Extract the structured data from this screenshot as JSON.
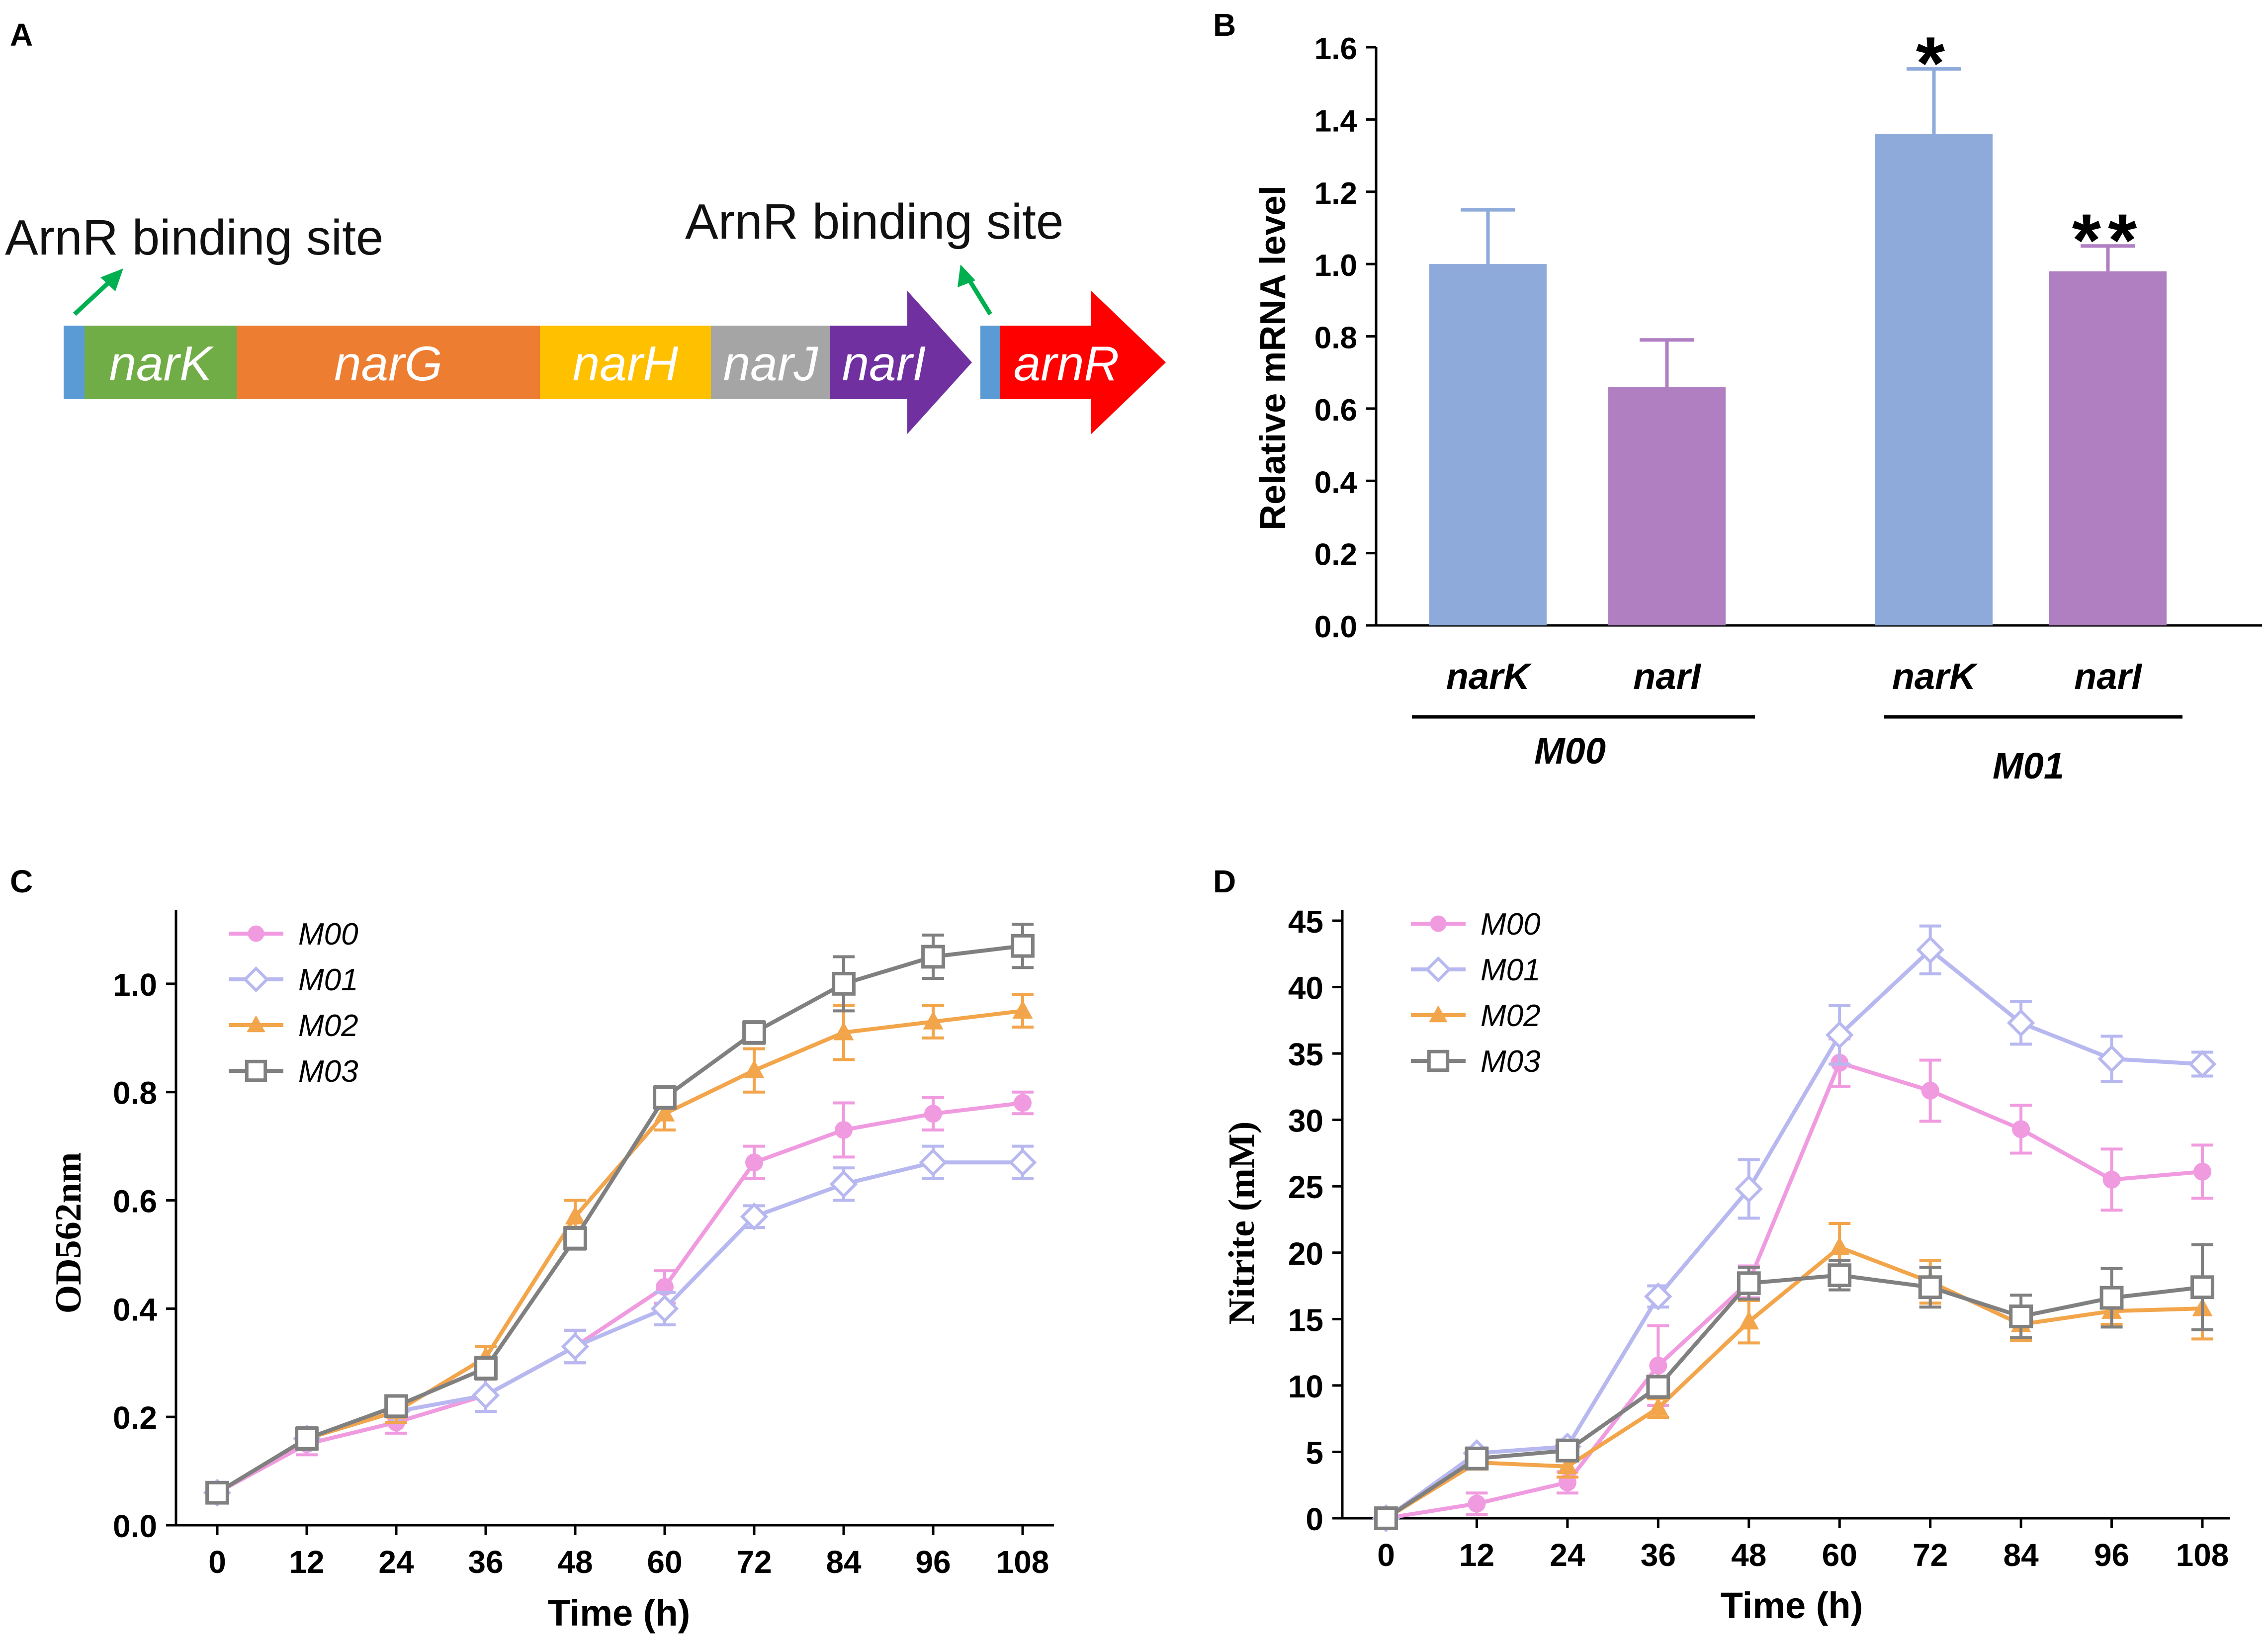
{
  "panels": {
    "A": {
      "label": "A",
      "binding_labels": [
        "ArnR binding site",
        "ArnR binding site"
      ],
      "genes": [
        {
          "name": "narK",
          "color": "#70AD47"
        },
        {
          "name": "narG",
          "color": "#ED7D31"
        },
        {
          "name": "narH",
          "color": "#FFC000"
        },
        {
          "name": "narJ",
          "color": "#A5A5A5"
        },
        {
          "name": "narI",
          "color": "#7030A0"
        },
        {
          "name": "arnR",
          "color": "#FF0000"
        }
      ],
      "binding_box_color": "#5B9BD5",
      "arrow_color": "#00B050"
    },
    "B": {
      "label": "B"
    },
    "C": {
      "label": "C"
    },
    "D": {
      "label": "D"
    }
  },
  "chart_data": [
    {
      "panel": "B",
      "type": "bar",
      "ylabel": "Relative mRNA level",
      "ylim": [
        0,
        1.6
      ],
      "yticks": [
        "0.0",
        "0.2",
        "0.4",
        "0.6",
        "0.8",
        "1.0",
        "1.2",
        "1.4",
        "1.6"
      ],
      "groups": [
        {
          "name": "M00",
          "bars": [
            {
              "gene": "narK",
              "value": 1.0,
              "error": 0.15,
              "color": "#8EAADB",
              "sig": ""
            },
            {
              "gene": "narI",
              "value": 0.66,
              "error": 0.13,
              "color": "#B07FC2",
              "sig": ""
            }
          ]
        },
        {
          "name": "M01",
          "bars": [
            {
              "gene": "narK",
              "value": 1.36,
              "error": 0.18,
              "color": "#8EAADB",
              "sig": "*"
            },
            {
              "gene": "narI",
              "value": 0.98,
              "error": 0.07,
              "color": "#B07FC2",
              "sig": "**"
            }
          ]
        }
      ]
    },
    {
      "panel": "C",
      "type": "line",
      "xlabel": "Time (h)",
      "ylabel": "OD562nm",
      "x": [
        0,
        12,
        24,
        36,
        48,
        60,
        72,
        84,
        96,
        108
      ],
      "xlim": [
        0,
        108
      ],
      "ylim": [
        0,
        1.1
      ],
      "yticks": [
        "0.0",
        "0.2",
        "0.4",
        "0.6",
        "0.8",
        "1.0"
      ],
      "yticks_values": [
        0,
        0.2,
        0.4,
        0.6,
        0.8,
        1.0
      ],
      "legend": "top-left",
      "series": [
        {
          "name": "M00",
          "color": "#F09BE0",
          "marker": "circle",
          "values": [
            0.06,
            0.15,
            0.19,
            0.24,
            0.33,
            0.44,
            0.67,
            0.73,
            0.76,
            0.78
          ],
          "errors": [
            0.01,
            0.02,
            0.02,
            0.03,
            0.03,
            0.03,
            0.03,
            0.05,
            0.03,
            0.02
          ]
        },
        {
          "name": "M01",
          "color": "#B8B8F0",
          "marker": "diamond",
          "values": [
            0.06,
            0.16,
            0.21,
            0.24,
            0.33,
            0.4,
            0.57,
            0.63,
            0.67,
            0.67
          ],
          "errors": [
            0.01,
            0.02,
            0.02,
            0.03,
            0.03,
            0.03,
            0.02,
            0.03,
            0.03,
            0.03
          ]
        },
        {
          "name": "M02",
          "color": "#F2A54A",
          "marker": "triangle",
          "values": [
            0.06,
            0.16,
            0.21,
            0.31,
            0.57,
            0.76,
            0.84,
            0.91,
            0.93,
            0.95
          ],
          "errors": [
            0.01,
            0.02,
            0.02,
            0.02,
            0.03,
            0.03,
            0.04,
            0.05,
            0.03,
            0.03
          ]
        },
        {
          "name": "M03",
          "color": "#808080",
          "marker": "square",
          "values": [
            0.06,
            0.16,
            0.22,
            0.29,
            0.53,
            0.79,
            0.91,
            1.0,
            1.05,
            1.07
          ],
          "errors": [
            0.01,
            0.02,
            0.01,
            0.02,
            0.02,
            0.02,
            0.02,
            0.05,
            0.04,
            0.04
          ]
        }
      ]
    },
    {
      "panel": "D",
      "type": "line",
      "xlabel": "Time (h)",
      "ylabel": "Nitrite (mM)",
      "x": [
        0,
        12,
        24,
        36,
        48,
        60,
        72,
        84,
        96,
        108
      ],
      "xlim": [
        0,
        108
      ],
      "ylim": [
        0,
        45
      ],
      "yticks": [
        "0",
        "5",
        "10",
        "15",
        "20",
        "25",
        "30",
        "35",
        "40",
        "45"
      ],
      "yticks_values": [
        0,
        5,
        10,
        15,
        20,
        25,
        30,
        35,
        40,
        45
      ],
      "legend": "top-left",
      "series": [
        {
          "name": "M00",
          "color": "#F09BE0",
          "marker": "circle",
          "values": [
            0,
            1.1,
            2.7,
            11.5,
            17.8,
            34.3,
            32.2,
            29.3,
            25.5,
            26.1
          ],
          "errors": [
            0.3,
            0.8,
            0.8,
            3.0,
            1.2,
            1.8,
            2.3,
            1.8,
            2.3,
            2.0
          ]
        },
        {
          "name": "M01",
          "color": "#B8B8F0",
          "marker": "diamond",
          "values": [
            0,
            4.9,
            5.4,
            16.7,
            24.8,
            36.4,
            42.8,
            37.3,
            34.6,
            34.2
          ],
          "errors": [
            0.3,
            0.4,
            0.5,
            0.8,
            2.2,
            2.2,
            1.8,
            1.6,
            1.7,
            0.9
          ]
        },
        {
          "name": "M02",
          "color": "#F2A54A",
          "marker": "triangle",
          "values": [
            0,
            4.2,
            3.9,
            8.3,
            14.8,
            20.4,
            17.8,
            14.6,
            15.6,
            15.8
          ],
          "errors": [
            0.3,
            0.5,
            0.8,
            0.7,
            1.6,
            1.8,
            1.6,
            1.2,
            1.0,
            2.3
          ]
        },
        {
          "name": "M03",
          "color": "#808080",
          "marker": "square",
          "values": [
            0,
            4.5,
            5.1,
            9.9,
            17.7,
            18.3,
            17.4,
            15.2,
            16.6,
            17.4
          ],
          "errors": [
            0.3,
            0.5,
            0.5,
            0.8,
            1.2,
            1.1,
            1.5,
            1.6,
            2.2,
            3.2
          ]
        }
      ]
    }
  ]
}
